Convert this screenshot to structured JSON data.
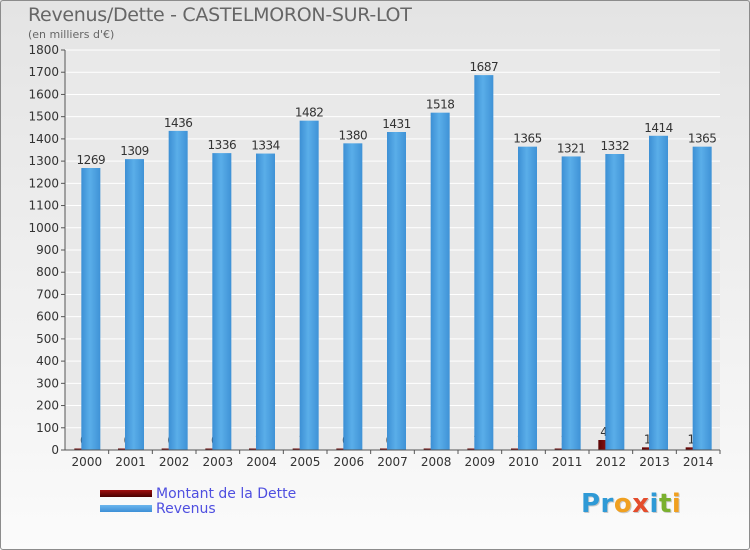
{
  "title": "Revenus/Dette - CASTELMORON-SUR-LOT",
  "subtitle": "(en milliers d'€)",
  "colors": {
    "revenus": "#4aa0e0",
    "dette": "#6e0a0a",
    "grid": "#ffffff",
    "text": "#333333"
  },
  "legend": {
    "dette_label": "Montant de la Dette",
    "revenus_label": "Revenus"
  },
  "logo": {
    "p1": "Pr",
    "o": "o",
    "x": "x",
    "i1": "i",
    "t": "t",
    "i2": "i"
  },
  "chart_data": {
    "type": "bar",
    "categories": [
      "2000",
      "2001",
      "2002",
      "2003",
      "2004",
      "2005",
      "2006",
      "2007",
      "2008",
      "2009",
      "2010",
      "2011",
      "2012",
      "2013",
      "2014"
    ],
    "series": [
      {
        "name": "Montant de la Dette",
        "values": [
          0,
          0,
          0,
          0,
          1,
          1,
          0,
          0,
          1,
          1,
          1,
          1,
          45,
          12,
          12
        ]
      },
      {
        "name": "Revenus",
        "values": [
          1269,
          1309,
          1436,
          1336,
          1334,
          1482,
          1380,
          1431,
          1518,
          1687,
          1365,
          1321,
          1332,
          1414,
          1365
        ]
      }
    ],
    "yticks": [
      0,
      100,
      200,
      300,
      400,
      500,
      600,
      700,
      800,
      900,
      1000,
      1100,
      1200,
      1300,
      1400,
      1500,
      1600,
      1700,
      1800
    ],
    "ylim": [
      0,
      1800
    ],
    "grid": true,
    "legend_position": "bottom-left"
  }
}
